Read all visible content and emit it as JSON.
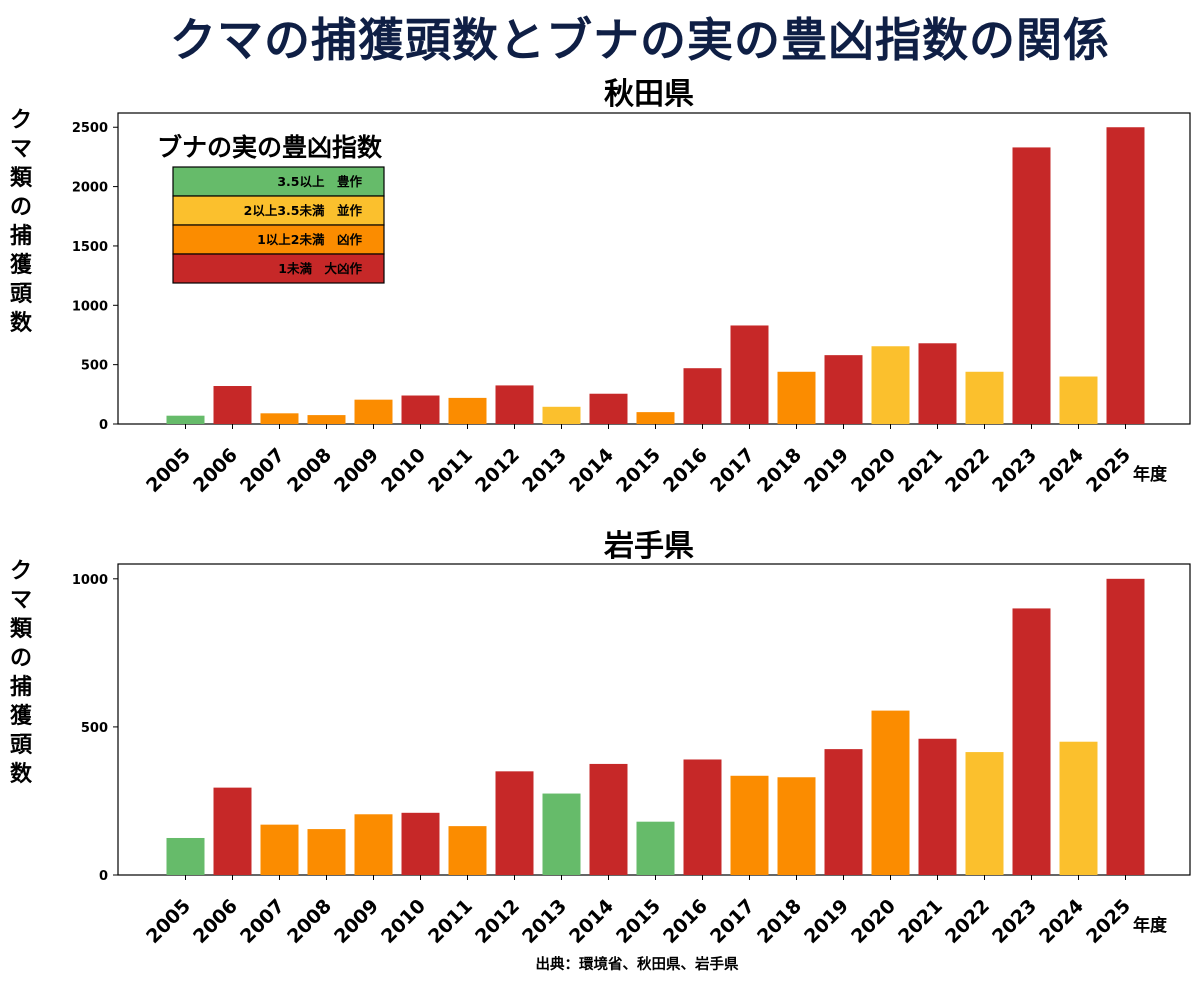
{
  "title": "クマの捕獲頭数とブナの実の豊凶指数の関係",
  "source": "出典：環境省、秋田県、岩手県",
  "legend": {
    "title": "ブナの実の豊凶指数",
    "items": [
      {
        "label": "3.5以上　豊作",
        "color": "#66bb6a"
      },
      {
        "label": "2以上3.5未満　並作",
        "color": "#fbc02d"
      },
      {
        "label": "1以上2未満　凶作",
        "color": "#fb8c00"
      },
      {
        "label": "1未満　大凶作",
        "color": "#c62828"
      }
    ]
  },
  "colors": {
    "green": "#66bb6a",
    "yellow": "#fbc02d",
    "orange": "#fb8c00",
    "red": "#c62828"
  },
  "chart_data": [
    {
      "type": "bar",
      "title": "秋田県",
      "ylabel": "クマ類の捕獲頭数",
      "xlabel": "年度",
      "ylim": [
        0,
        2620
      ],
      "yticks": [
        0,
        500,
        1000,
        1500,
        2000,
        2500
      ],
      "categories": [
        "2005",
        "2006",
        "2007",
        "2008",
        "2009",
        "2010",
        "2011",
        "2012",
        "2013",
        "2014",
        "2015",
        "2016",
        "2017",
        "2018",
        "2019",
        "2020",
        "2021",
        "2022",
        "2023",
        "2024",
        "2025"
      ],
      "values": [
        70,
        320,
        90,
        75,
        205,
        240,
        220,
        325,
        145,
        255,
        100,
        470,
        830,
        440,
        580,
        655,
        680,
        440,
        2330,
        400,
        2500
      ],
      "bar_classes": [
        "green",
        "red",
        "orange",
        "orange",
        "orange",
        "red",
        "orange",
        "red",
        "yellow",
        "red",
        "orange",
        "red",
        "red",
        "orange",
        "red",
        "yellow",
        "red",
        "yellow",
        "red",
        "yellow",
        "red"
      ]
    },
    {
      "type": "bar",
      "title": "岩手県",
      "ylabel": "クマ類の捕獲頭数",
      "xlabel": "年度",
      "ylim": [
        0,
        1050
      ],
      "yticks": [
        0,
        500,
        1000
      ],
      "categories": [
        "2005",
        "2006",
        "2007",
        "2008",
        "2009",
        "2010",
        "2011",
        "2012",
        "2013",
        "2014",
        "2015",
        "2016",
        "2017",
        "2018",
        "2019",
        "2020",
        "2021",
        "2022",
        "2023",
        "2024",
        "2025"
      ],
      "values": [
        125,
        295,
        170,
        155,
        205,
        210,
        165,
        350,
        275,
        375,
        180,
        390,
        335,
        330,
        425,
        555,
        460,
        415,
        900,
        450,
        1000
      ],
      "bar_classes": [
        "green",
        "red",
        "orange",
        "orange",
        "orange",
        "red",
        "orange",
        "red",
        "green",
        "red",
        "green",
        "red",
        "orange",
        "orange",
        "red",
        "orange",
        "red",
        "yellow",
        "red",
        "yellow",
        "red"
      ]
    }
  ]
}
